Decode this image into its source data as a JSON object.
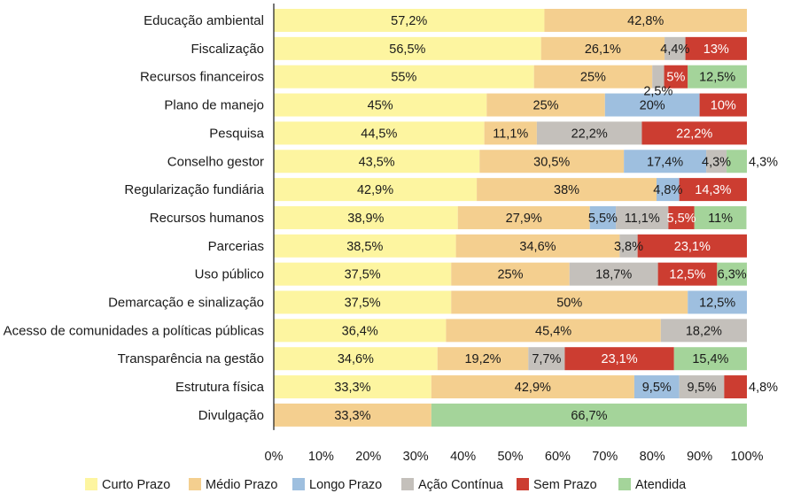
{
  "chart_data": {
    "type": "bar",
    "orientation": "horizontal",
    "stacked": true,
    "xlim": [
      0,
      100
    ],
    "x_ticks": [
      "0%",
      "10%",
      "20%",
      "30%",
      "40%",
      "50%",
      "60%",
      "70%",
      "80%",
      "90%",
      "100%"
    ],
    "grid": false,
    "legend_position": "bottom",
    "title": "",
    "xlabel": "",
    "ylabel": "",
    "series": [
      {
        "name": "Curto Prazo",
        "color": "#fdf5a0",
        "text_color": "#1a1a1a"
      },
      {
        "name": "Médio Prazo",
        "color": "#f4cf8f",
        "text_color": "#1a1a1a"
      },
      {
        "name": "Longo Prazo",
        "color": "#9ebfdf",
        "text_color": "#1a1a1a"
      },
      {
        "name": "Ação Contínua",
        "color": "#c4c0bb",
        "text_color": "#1a1a1a"
      },
      {
        "name": "Sem Prazo",
        "color": "#cc3d31",
        "text_color": "#ffffff"
      },
      {
        "name": "Atendida",
        "color": "#a4d49a",
        "text_color": "#1a1a1a"
      }
    ],
    "categories": [
      {
        "name": "Educação ambiental",
        "segments": [
          {
            "series": 0,
            "value": 57.2,
            "label": "57,2%"
          },
          {
            "series": 1,
            "value": 42.8,
            "label": "42,8%"
          }
        ]
      },
      {
        "name": "Fiscalização",
        "segments": [
          {
            "series": 0,
            "value": 56.5,
            "label": "56,5%"
          },
          {
            "series": 1,
            "value": 26.1,
            "label": "26,1%"
          },
          {
            "series": 3,
            "value": 4.4,
            "label": "4,4%"
          },
          {
            "series": 4,
            "value": 13,
            "label": "13%"
          }
        ]
      },
      {
        "name": "Recursos financeiros",
        "segments": [
          {
            "series": 0,
            "value": 55,
            "label": "55%"
          },
          {
            "series": 1,
            "value": 25,
            "label": "25%"
          },
          {
            "series": 3,
            "value": 2.5,
            "label": "2,5%",
            "label_pos": "below"
          },
          {
            "series": 4,
            "value": 5,
            "label": "5%"
          },
          {
            "series": 5,
            "value": 12.5,
            "label": "12,5%"
          }
        ]
      },
      {
        "name": "Plano de manejo",
        "segments": [
          {
            "series": 0,
            "value": 45,
            "label": "45%"
          },
          {
            "series": 1,
            "value": 25,
            "label": "25%"
          },
          {
            "series": 2,
            "value": 20,
            "label": "20%"
          },
          {
            "series": 4,
            "value": 10,
            "label": "10%"
          }
        ]
      },
      {
        "name": "Pesquisa",
        "segments": [
          {
            "series": 0,
            "value": 44.5,
            "label": "44,5%"
          },
          {
            "series": 1,
            "value": 11.1,
            "label": "11,1%"
          },
          {
            "series": 3,
            "value": 22.2,
            "label": "22,2%"
          },
          {
            "series": 4,
            "value": 22.2,
            "label": "22,2%"
          }
        ]
      },
      {
        "name": "Conselho gestor",
        "segments": [
          {
            "series": 0,
            "value": 43.5,
            "label": "43,5%"
          },
          {
            "series": 1,
            "value": 30.5,
            "label": "30,5%"
          },
          {
            "series": 2,
            "value": 17.4,
            "label": "17,4%"
          },
          {
            "series": 3,
            "value": 4.3,
            "label": "4,3%"
          },
          {
            "series": 5,
            "value": 4.3,
            "label": "4,3%",
            "label_pos": "outside"
          }
        ]
      },
      {
        "name": "Regularização fundiária",
        "segments": [
          {
            "series": 0,
            "value": 42.9,
            "label": "42,9%"
          },
          {
            "series": 1,
            "value": 38,
            "label": "38%"
          },
          {
            "series": 2,
            "value": 4.8,
            "label": "4,8%"
          },
          {
            "series": 4,
            "value": 14.3,
            "label": "14,3%"
          }
        ]
      },
      {
        "name": "Recursos humanos",
        "segments": [
          {
            "series": 0,
            "value": 38.9,
            "label": "38,9%"
          },
          {
            "series": 1,
            "value": 27.9,
            "label": "27,9%"
          },
          {
            "series": 2,
            "value": 5.5,
            "label": "5,5%"
          },
          {
            "series": 3,
            "value": 11.1,
            "label": "11,1%"
          },
          {
            "series": 4,
            "value": 5.5,
            "label": "5,5%"
          },
          {
            "series": 5,
            "value": 11,
            "label": "11%"
          }
        ]
      },
      {
        "name": "Parcerias",
        "segments": [
          {
            "series": 0,
            "value": 38.5,
            "label": "38,5%"
          },
          {
            "series": 1,
            "value": 34.6,
            "label": "34,6%"
          },
          {
            "series": 3,
            "value": 3.8,
            "label": "3,8%"
          },
          {
            "series": 4,
            "value": 23.1,
            "label": "23,1%"
          }
        ]
      },
      {
        "name": "Uso público",
        "segments": [
          {
            "series": 0,
            "value": 37.5,
            "label": "37,5%"
          },
          {
            "series": 1,
            "value": 25,
            "label": "25%"
          },
          {
            "series": 3,
            "value": 18.7,
            "label": "18,7%"
          },
          {
            "series": 4,
            "value": 12.5,
            "label": "12,5%"
          },
          {
            "series": 5,
            "value": 6.3,
            "label": "6,3%"
          }
        ]
      },
      {
        "name": "Demarcação e sinalização",
        "segments": [
          {
            "series": 0,
            "value": 37.5,
            "label": "37,5%"
          },
          {
            "series": 1,
            "value": 50,
            "label": "50%"
          },
          {
            "series": 2,
            "value": 12.5,
            "label": "12,5%"
          }
        ]
      },
      {
        "name": "Acesso de comunidades a políticas públicas",
        "segments": [
          {
            "series": 0,
            "value": 36.4,
            "label": "36,4%"
          },
          {
            "series": 1,
            "value": 45.4,
            "label": "45,4%"
          },
          {
            "series": 3,
            "value": 18.2,
            "label": "18,2%"
          }
        ]
      },
      {
        "name": "Transparência na gestão",
        "segments": [
          {
            "series": 0,
            "value": 34.6,
            "label": "34,6%"
          },
          {
            "series": 1,
            "value": 19.2,
            "label": "19,2%"
          },
          {
            "series": 3,
            "value": 7.7,
            "label": "7,7%"
          },
          {
            "series": 4,
            "value": 23.1,
            "label": "23,1%"
          },
          {
            "series": 5,
            "value": 15.4,
            "label": "15,4%"
          }
        ]
      },
      {
        "name": "Estrutura física",
        "segments": [
          {
            "series": 0,
            "value": 33.3,
            "label": "33,3%"
          },
          {
            "series": 1,
            "value": 42.9,
            "label": "42,9%"
          },
          {
            "series": 2,
            "value": 9.5,
            "label": "9,5%"
          },
          {
            "series": 3,
            "value": 9.5,
            "label": "9,5%"
          },
          {
            "series": 4,
            "value": 4.8,
            "label": "4,8%",
            "label_pos": "outside"
          }
        ]
      },
      {
        "name": "Divulgação",
        "segments": [
          {
            "series": 1,
            "value": 33.3,
            "label": "33,3%"
          },
          {
            "series": 5,
            "value": 66.7,
            "label": "66,7%"
          }
        ]
      }
    ]
  }
}
